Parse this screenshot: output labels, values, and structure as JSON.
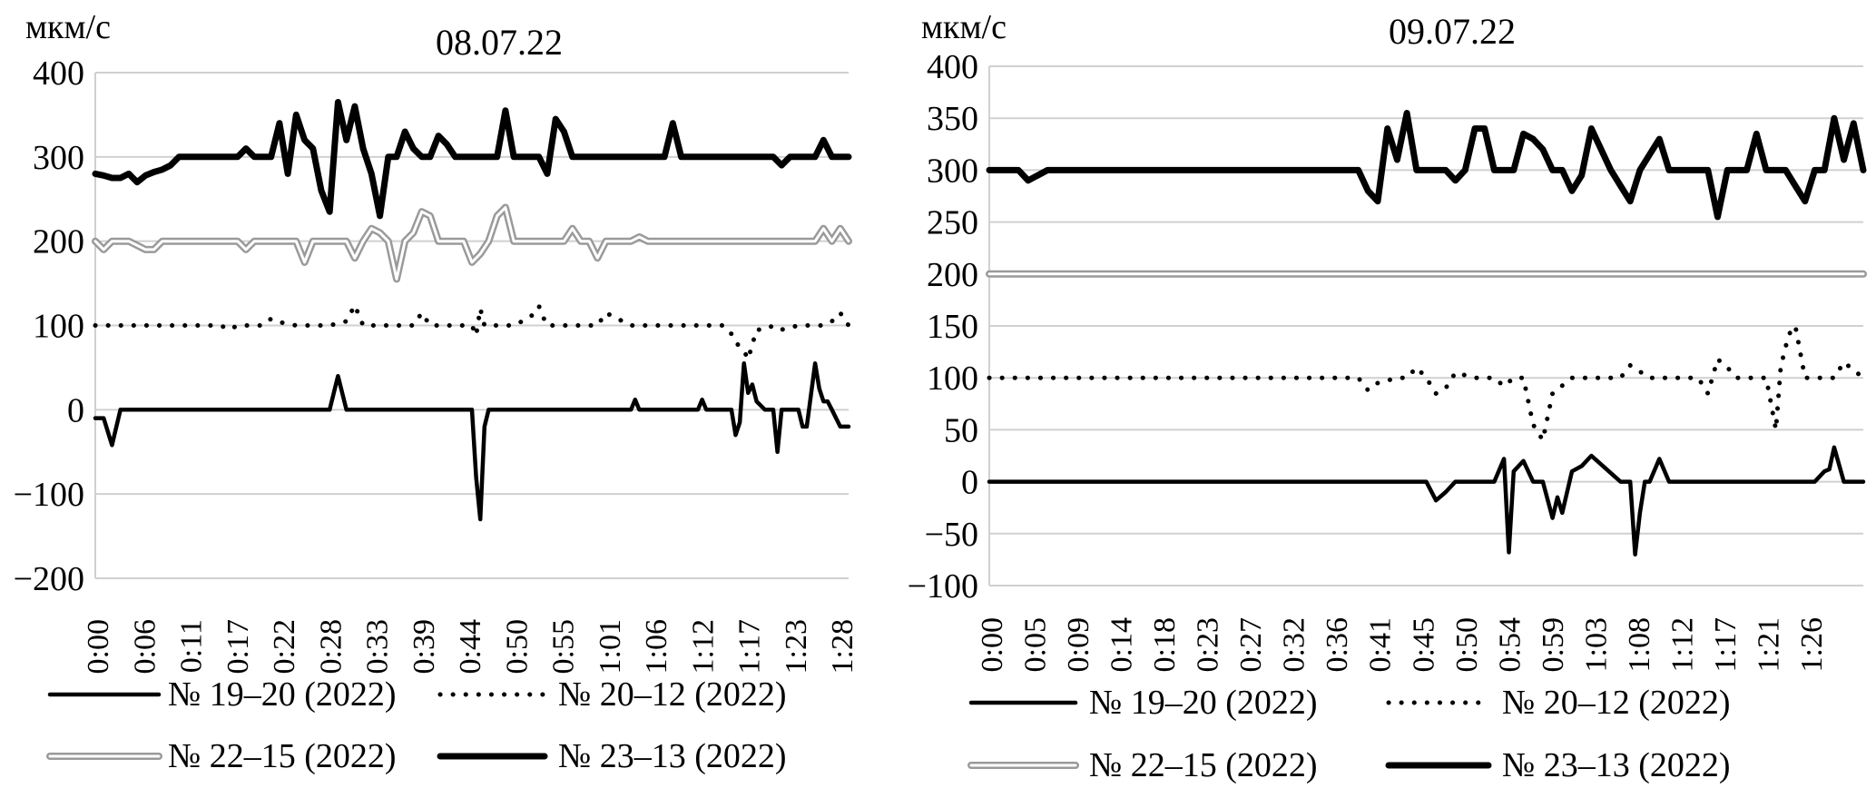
{
  "chart_data": [
    {
      "type": "line",
      "title": "08.07.22",
      "ylabel": "мкм/с",
      "ylim": [
        -200,
        400
      ],
      "yticks": [
        400,
        300,
        200,
        100,
        0,
        -100,
        -200
      ],
      "xlim": [
        0,
        90
      ],
      "xtick_labels": [
        "0:00",
        "0:06",
        "0:11",
        "0:17",
        "0:22",
        "0:28",
        "0:33",
        "0:39",
        "0:44",
        "0:50",
        "0:55",
        "1:01",
        "1:06",
        "1:12",
        "1:17",
        "1:23",
        "1:28"
      ],
      "grid": "horizontal",
      "legend": "bottom",
      "series": [
        {
          "name": "№ 19–20 (2022)",
          "style": "solid-thin",
          "x": [
            0,
            1,
            2,
            3,
            28,
            29,
            30,
            45,
            45.5,
            46,
            46.5,
            47,
            64,
            64.5,
            65,
            72,
            72.5,
            73,
            76,
            76.5,
            77,
            77.5,
            78,
            78.5,
            79,
            80,
            81,
            81.5,
            82,
            82.5,
            83,
            84,
            84.5,
            85,
            86,
            86.5,
            87,
            87.5,
            88,
            88.5,
            89,
            89.5,
            90
          ],
          "y": [
            -10,
            -10,
            -42,
            0,
            0,
            40,
            0,
            0,
            -80,
            -130,
            -20,
            0,
            0,
            12,
            0,
            0,
            12,
            0,
            0,
            -30,
            -15,
            55,
            20,
            30,
            10,
            0,
            0,
            -50,
            0,
            0,
            0,
            0,
            -20,
            -20,
            55,
            25,
            10,
            10,
            0,
            -10,
            -20,
            -20,
            -20
          ]
        },
        {
          "name": "№ 20–12 (2022)",
          "style": "dotted",
          "x": [
            0,
            5,
            10,
            15,
            16,
            17,
            18,
            20,
            21,
            22,
            24,
            26,
            28,
            30,
            31,
            32,
            34,
            36,
            38,
            39,
            40,
            42,
            44,
            45,
            45.5,
            46,
            46.5,
            47,
            50,
            52,
            53,
            53.5,
            54,
            56,
            58,
            60,
            61,
            62,
            64,
            66,
            68,
            70,
            72,
            74,
            75,
            76,
            76.5,
            77,
            77.5,
            78,
            79,
            80,
            81,
            82,
            84,
            85,
            86,
            87,
            88,
            89,
            90
          ],
          "y": [
            100,
            100,
            100,
            100,
            95,
            100,
            100,
            100,
            108,
            104,
            100,
            100,
            100,
            105,
            124,
            100,
            100,
            100,
            100,
            115,
            100,
            100,
            100,
            100,
            88,
            120,
            100,
            100,
            100,
            110,
            123,
            110,
            100,
            100,
            100,
            100,
            115,
            110,
            100,
            100,
            100,
            100,
            100,
            100,
            100,
            90,
            80,
            75,
            70,
            60,
            95,
            95,
            100,
            95,
            100,
            100,
            100,
            100,
            105,
            115,
            100
          ]
        },
        {
          "name": "№ 22–15 (2022)",
          "style": "double-gray",
          "x": [
            0,
            1,
            2,
            3,
            4,
            6,
            7,
            8,
            9,
            10,
            11,
            12,
            13,
            14,
            15,
            16,
            17,
            18,
            19,
            20,
            21,
            22,
            23,
            24,
            25,
            26,
            27,
            28,
            29,
            30,
            31,
            32,
            33,
            34,
            35,
            36,
            37,
            38,
            39,
            40,
            41,
            42,
            43,
            44,
            45,
            46,
            47,
            48,
            49,
            50,
            51,
            52,
            53,
            54,
            55,
            56,
            57,
            58,
            59,
            60,
            61,
            62,
            63,
            64,
            65,
            66,
            67,
            68,
            69,
            70,
            72,
            74,
            76,
            78,
            80,
            82,
            84,
            85,
            86,
            87,
            88,
            89,
            90
          ],
          "y": [
            200,
            190,
            200,
            200,
            200,
            190,
            190,
            200,
            200,
            200,
            200,
            200,
            200,
            200,
            200,
            200,
            200,
            190,
            200,
            200,
            200,
            200,
            200,
            200,
            175,
            200,
            200,
            200,
            200,
            200,
            180,
            200,
            215,
            210,
            200,
            155,
            200,
            210,
            235,
            230,
            200,
            200,
            200,
            200,
            175,
            185,
            200,
            230,
            240,
            200,
            200,
            200,
            200,
            200,
            200,
            200,
            215,
            200,
            200,
            180,
            200,
            200,
            200,
            200,
            205,
            200,
            200,
            200,
            200,
            200,
            200,
            200,
            200,
            200,
            200,
            200,
            200,
            200,
            200,
            215,
            200,
            215,
            200
          ]
        },
        {
          "name": "№ 23–13 (2022)",
          "style": "solid-thick",
          "x": [
            0,
            1,
            2,
            3,
            4,
            5,
            6,
            7,
            8,
            9,
            10,
            11,
            12,
            13,
            14,
            15,
            16,
            17,
            18,
            19,
            20,
            21,
            22,
            23,
            24,
            25,
            26,
            27,
            28,
            29,
            30,
            31,
            32,
            33,
            34,
            35,
            36,
            37,
            38,
            39,
            40,
            41,
            42,
            43,
            44,
            45,
            46,
            47,
            48,
            49,
            50,
            51,
            52,
            53,
            54,
            55,
            56,
            57,
            58,
            59,
            60,
            61,
            62,
            63,
            64,
            65,
            66,
            67,
            68,
            69,
            70,
            71,
            72,
            73,
            74,
            75,
            76,
            77,
            78,
            79,
            80,
            81,
            82,
            83,
            84,
            85,
            86,
            87,
            88,
            89,
            90
          ],
          "y": [
            280,
            278,
            275,
            275,
            280,
            270,
            278,
            282,
            285,
            290,
            300,
            300,
            300,
            300,
            300,
            300,
            300,
            300,
            310,
            300,
            300,
            300,
            340,
            280,
            350,
            320,
            310,
            260,
            235,
            365,
            320,
            360,
            310,
            280,
            230,
            300,
            300,
            330,
            310,
            300,
            300,
            325,
            315,
            300,
            300,
            300,
            300,
            300,
            300,
            355,
            300,
            300,
            300,
            300,
            280,
            345,
            330,
            300,
            300,
            300,
            300,
            300,
            300,
            300,
            300,
            300,
            300,
            300,
            300,
            340,
            300,
            300,
            300,
            300,
            300,
            300,
            300,
            300,
            300,
            300,
            300,
            300,
            290,
            300,
            300,
            300,
            300,
            320,
            300,
            300,
            300
          ]
        }
      ]
    },
    {
      "type": "line",
      "title": "09.07.22",
      "ylabel": "мкм/с",
      "ylim": [
        -100,
        400
      ],
      "yticks": [
        400,
        350,
        300,
        250,
        200,
        150,
        100,
        50,
        0,
        -50,
        -100
      ],
      "xlim": [
        0,
        90
      ],
      "xtick_labels": [
        "0:00",
        "0:05",
        "0:09",
        "0:14",
        "0:18",
        "0:23",
        "0:27",
        "0:32",
        "0:36",
        "0:41",
        "0:45",
        "0:50",
        "0:54",
        "0:59",
        "1:03",
        "1:08",
        "1:12",
        "1:17",
        "1:21",
        "1:26"
      ],
      "grid": "horizontal",
      "legend": "bottom",
      "series": [
        {
          "name": "№ 19–20 (2022)",
          "style": "solid-thin",
          "x": [
            0,
            10,
            20,
            30,
            40,
            45,
            46,
            47,
            48,
            52,
            53,
            53.5,
            54,
            55,
            56,
            57,
            58,
            58.5,
            59,
            60,
            61,
            62,
            65,
            66,
            66.5,
            67,
            67.5,
            68,
            69,
            70,
            75,
            80,
            84,
            85,
            86,
            86.5,
            87,
            88,
            90
          ],
          "y": [
            0,
            0,
            0,
            0,
            0,
            0,
            -18,
            -10,
            0,
            0,
            22,
            -68,
            10,
            20,
            0,
            0,
            -35,
            -15,
            -30,
            10,
            15,
            25,
            0,
            0,
            -70,
            -30,
            0,
            0,
            22,
            0,
            0,
            0,
            0,
            0,
            10,
            12,
            33,
            0,
            0
          ]
        },
        {
          "name": "№ 20–12 (2022)",
          "style": "dotted",
          "x": [
            0,
            10,
            20,
            30,
            38,
            39,
            40,
            42,
            43,
            44,
            45,
            46,
            47,
            48,
            50,
            51,
            52,
            53,
            54,
            55,
            56,
            57,
            58,
            60,
            62,
            64,
            65,
            66,
            68,
            70,
            72,
            73,
            74,
            75,
            76,
            77,
            78,
            79,
            80,
            80.5,
            81,
            81.5,
            82,
            82.5,
            83,
            84,
            86,
            87,
            88,
            90
          ],
          "y": [
            100,
            100,
            100,
            100,
            100,
            88,
            95,
            100,
            100,
            110,
            100,
            85,
            90,
            105,
            100,
            100,
            100,
            92,
            100,
            100,
            55,
            40,
            85,
            100,
            100,
            100,
            100,
            112,
            100,
            100,
            100,
            100,
            85,
            118,
            110,
            100,
            100,
            100,
            100,
            75,
            50,
            110,
            130,
            145,
            150,
            100,
            100,
            100,
            115,
            100
          ]
        },
        {
          "name": "№ 22–15 (2022)",
          "style": "double-gray",
          "x": [
            0,
            90
          ],
          "y": [
            200,
            200
          ]
        },
        {
          "name": "№ 23–13 (2022)",
          "style": "solid-thick",
          "x": [
            0,
            3,
            4,
            5,
            6,
            10,
            20,
            30,
            38,
            39,
            40,
            41,
            42,
            43,
            44,
            45,
            46,
            47,
            48,
            49,
            50,
            51,
            52,
            53,
            54,
            55,
            56,
            57,
            58,
            59,
            60,
            61,
            62,
            63,
            64,
            65,
            66,
            67,
            68,
            69,
            70,
            71,
            72,
            73,
            74,
            75,
            76,
            77,
            78,
            79,
            80,
            81,
            82,
            83,
            84,
            85,
            86,
            87,
            88,
            89,
            90
          ],
          "y": [
            300,
            300,
            290,
            295,
            300,
            300,
            300,
            300,
            300,
            280,
            270,
            340,
            310,
            355,
            300,
            300,
            300,
            300,
            290,
            300,
            340,
            340,
            300,
            300,
            300,
            335,
            330,
            320,
            300,
            300,
            280,
            295,
            340,
            320,
            300,
            285,
            270,
            300,
            315,
            330,
            300,
            300,
            300,
            300,
            300,
            255,
            300,
            300,
            300,
            335,
            300,
            300,
            300,
            285,
            270,
            300,
            300,
            350,
            310,
            345,
            300
          ]
        }
      ]
    }
  ]
}
